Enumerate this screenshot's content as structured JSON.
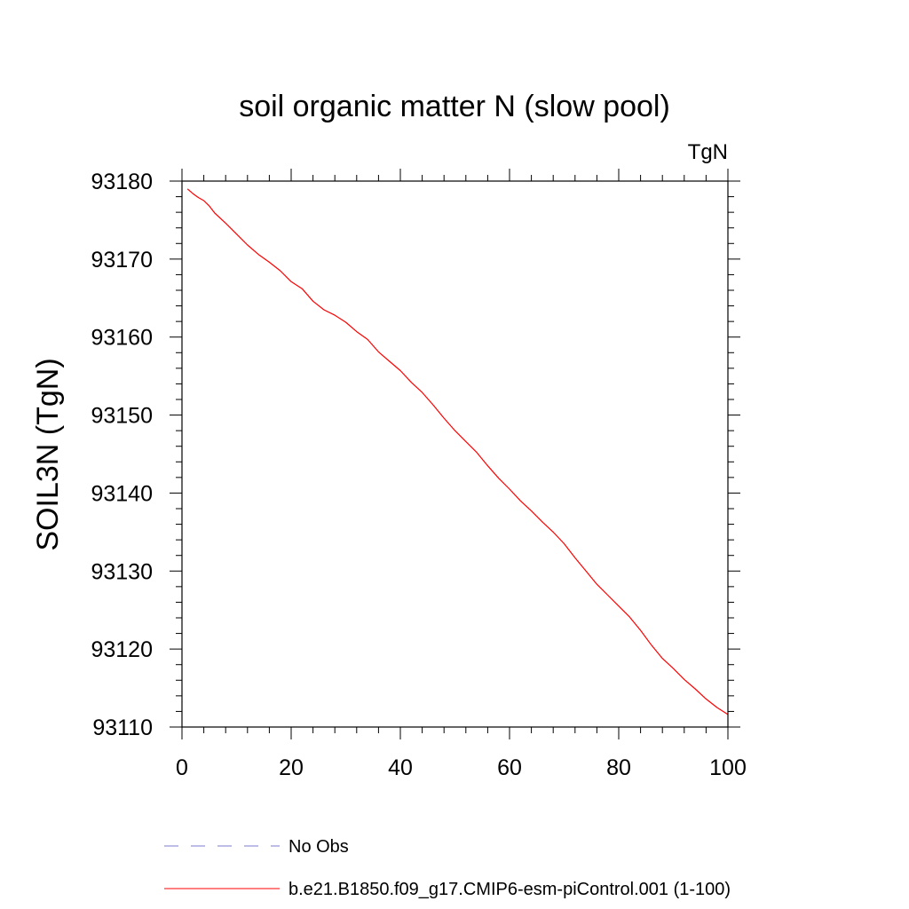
{
  "chart_data": {
    "type": "line",
    "title": "soil organic matter N (slow pool)",
    "units": "TgN",
    "ylabel": "SOIL3N  (TgN)",
    "xlabel": "",
    "xlim": [
      0,
      100
    ],
    "ylim": [
      93110,
      93180
    ],
    "xticks": [
      0,
      20,
      40,
      60,
      80,
      100
    ],
    "yticks": [
      93110,
      93120,
      93130,
      93140,
      93150,
      93160,
      93170,
      93180
    ],
    "grid": false,
    "legend_position": "bottom",
    "legend": [
      {
        "label": "No Obs",
        "color": "#7b7bd0",
        "style": "dashed"
      },
      {
        "label": "b.e21.B1850.f09_g17.CMIP6-esm-piControl.001 (1-100)",
        "color": "#ff0000",
        "style": "solid"
      }
    ],
    "series": [
      {
        "name": "b.e21.B1850.f09_g17.CMIP6-esm-piControl.001 (1-100)",
        "color": "#ff0000",
        "x": [
          1,
          2,
          3,
          4,
          5,
          6,
          8,
          10,
          12,
          14,
          16,
          18,
          20,
          22,
          24,
          26,
          28,
          30,
          32,
          34,
          36,
          38,
          40,
          42,
          44,
          46,
          48,
          50,
          52,
          54,
          56,
          58,
          60,
          62,
          64,
          66,
          68,
          70,
          72,
          74,
          76,
          78,
          80,
          82,
          84,
          86,
          88,
          90,
          92,
          94,
          96,
          98,
          100
        ],
        "y": [
          93179.0,
          93178.4,
          93177.9,
          93177.5,
          93176.8,
          93175.9,
          93174.6,
          93173.2,
          93171.8,
          93170.6,
          93169.6,
          93168.5,
          93167.1,
          93166.2,
          93164.6,
          93163.5,
          93162.8,
          93161.9,
          93160.7,
          93159.7,
          93158.1,
          93156.9,
          93155.7,
          93154.2,
          93152.9,
          93151.3,
          93149.6,
          93148.0,
          93146.6,
          93145.2,
          93143.5,
          93141.9,
          93140.5,
          93139.0,
          93137.7,
          93136.3,
          93135.0,
          93133.5,
          93131.7,
          93130.0,
          93128.3,
          93126.9,
          93125.5,
          93124.1,
          93122.4,
          93120.5,
          93118.8,
          93117.5,
          93116.1,
          93114.9,
          93113.6,
          93112.5,
          93111.6
        ]
      }
    ]
  }
}
